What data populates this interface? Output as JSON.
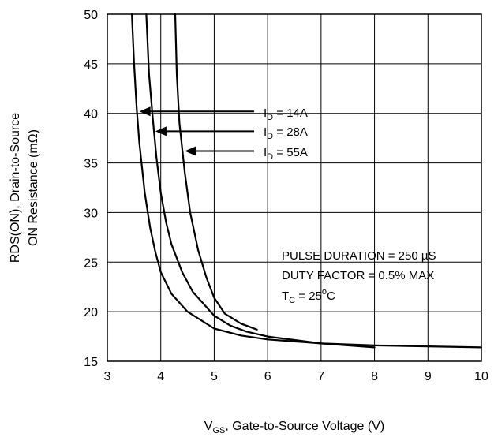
{
  "chart_data": {
    "type": "line",
    "title": "",
    "xlabel": {
      "main": "V",
      "sub": "GS",
      "rest": ", Gate-to-Source Voltage (V)"
    },
    "ylabel_line1": "RDS(ON), Drain-to-Source",
    "ylabel_line2": "ON Resistance (mΩ)",
    "xlim": [
      3,
      10
    ],
    "ylim": [
      15,
      50
    ],
    "xticks": [
      "3",
      "4",
      "5",
      "6",
      "7",
      "8",
      "9",
      "10"
    ],
    "yticks": [
      "15",
      "20",
      "25",
      "30",
      "35",
      "40",
      "45",
      "50"
    ],
    "grid": true,
    "series": [
      {
        "name": "ID = 14A",
        "x": [
          3.46,
          3.5,
          3.55,
          3.6,
          3.7,
          3.8,
          3.9,
          4.0,
          4.2,
          4.5,
          5.0,
          5.5,
          6.0,
          7.0,
          8.0,
          9.0,
          10.0
        ],
        "y": [
          50,
          45,
          40.5,
          37,
          32,
          28.5,
          26,
          24,
          21.8,
          20,
          18.3,
          17.6,
          17.2,
          16.8,
          16.6,
          16.5,
          16.4
        ]
      },
      {
        "name": "ID = 28A",
        "x": [
          3.73,
          3.78,
          3.85,
          3.92,
          4.0,
          4.1,
          4.2,
          4.4,
          4.6,
          4.8,
          5.0,
          5.3,
          5.6,
          6.0,
          7.0,
          8.0
        ],
        "y": [
          50,
          44,
          39.5,
          35.5,
          32,
          29,
          26.8,
          24,
          22,
          20.8,
          19.6,
          18.6,
          18.0,
          17.5,
          16.8,
          16.4
        ]
      },
      {
        "name": "ID = 55A",
        "x": [
          4.27,
          4.3,
          4.35,
          4.45,
          4.55,
          4.7,
          4.85,
          5.0,
          5.2,
          5.5,
          5.8
        ],
        "y": [
          50,
          44,
          39,
          34,
          30,
          26.2,
          23.5,
          21.4,
          19.8,
          18.8,
          18.2
        ]
      }
    ],
    "annotations": [
      {
        "main": "I",
        "sub": "D",
        "rest": " = 14A",
        "arrow_to": [
          3.6,
          40.2
        ]
      },
      {
        "main": "I",
        "sub": "D",
        "rest": " = 28A",
        "arrow_to": [
          3.9,
          38.2
        ]
      },
      {
        "main": "I",
        "sub": "D",
        "rest": " =  55A",
        "arrow_to": [
          4.45,
          36.2
        ]
      }
    ],
    "notes": {
      "line1": "PULSE DURATION = 250 µS",
      "line2": "DUTY FACTOR = 0.5% MAX",
      "line3_main": "T",
      "line3_sub": "C",
      "line3_rest": " = 25",
      "line3_deg": "o",
      "line3_unit": "C"
    }
  }
}
